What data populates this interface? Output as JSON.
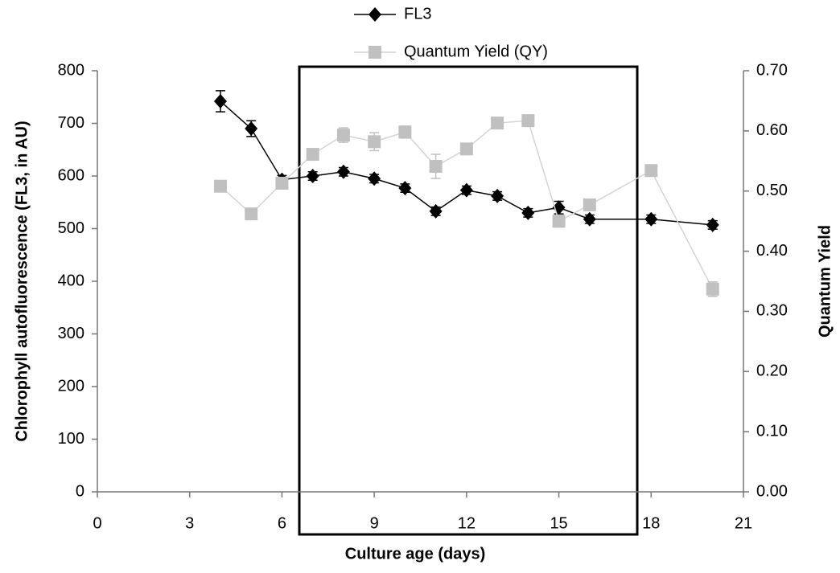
{
  "chart_data": {
    "type": "line",
    "x_label": "Culture age (days)",
    "y_label": "Chlorophyll autofluorescence (FL3, in AU)",
    "y2_label": "Quantum Yield",
    "x": [
      4,
      5,
      6,
      7,
      8,
      9,
      10,
      11,
      12,
      13,
      14,
      15,
      16,
      18,
      20
    ],
    "series": [
      {
        "name": "FL3",
        "color": "#000000",
        "values": [
          742,
          690,
          593,
          600,
          608,
          595,
          577,
          533,
          573,
          562,
          530,
          540,
          518,
          518,
          507
        ],
        "errors": [
          20,
          15,
          8,
          8,
          8,
          8,
          8,
          8,
          8,
          8,
          8,
          12,
          8,
          8,
          8
        ]
      },
      {
        "name": "Quantum Yield (QY)",
        "color": "#c0c0c0",
        "axis": "y2",
        "values": [
          0.508,
          0.462,
          0.513,
          0.561,
          0.593,
          0.582,
          0.598,
          0.541,
          0.57,
          0.613,
          0.617,
          0.45,
          0.477,
          0.534,
          0.337
        ],
        "errors": [
          0.008,
          0.005,
          0.008,
          0.005,
          0.012,
          0.015,
          0.01,
          0.02,
          0.005,
          0.005,
          0.005,
          0.01,
          0.008,
          0.005,
          0.012
        ]
      }
    ],
    "xlim": [
      0,
      21
    ],
    "xticks": [
      0,
      3,
      6,
      9,
      12,
      15,
      18,
      21
    ],
    "ylim": [
      0,
      800
    ],
    "yticks": [
      0,
      100,
      200,
      300,
      400,
      500,
      600,
      700,
      800
    ],
    "y2lim": [
      0,
      0.7
    ],
    "y2ticks": [
      {
        "value": 0,
        "label": "0.00"
      },
      {
        "value": 0.1,
        "label": "0.10"
      },
      {
        "value": 0.2,
        "label": "0.20"
      },
      {
        "value": 0.3,
        "label": "0.30"
      },
      {
        "value": 0.4,
        "label": "0.40"
      },
      {
        "value": 0.5,
        "label": "0.50"
      },
      {
        "value": 0.6,
        "label": "0.60"
      },
      {
        "value": 0.7,
        "label": "0.70"
      }
    ],
    "grid": false
  }
}
